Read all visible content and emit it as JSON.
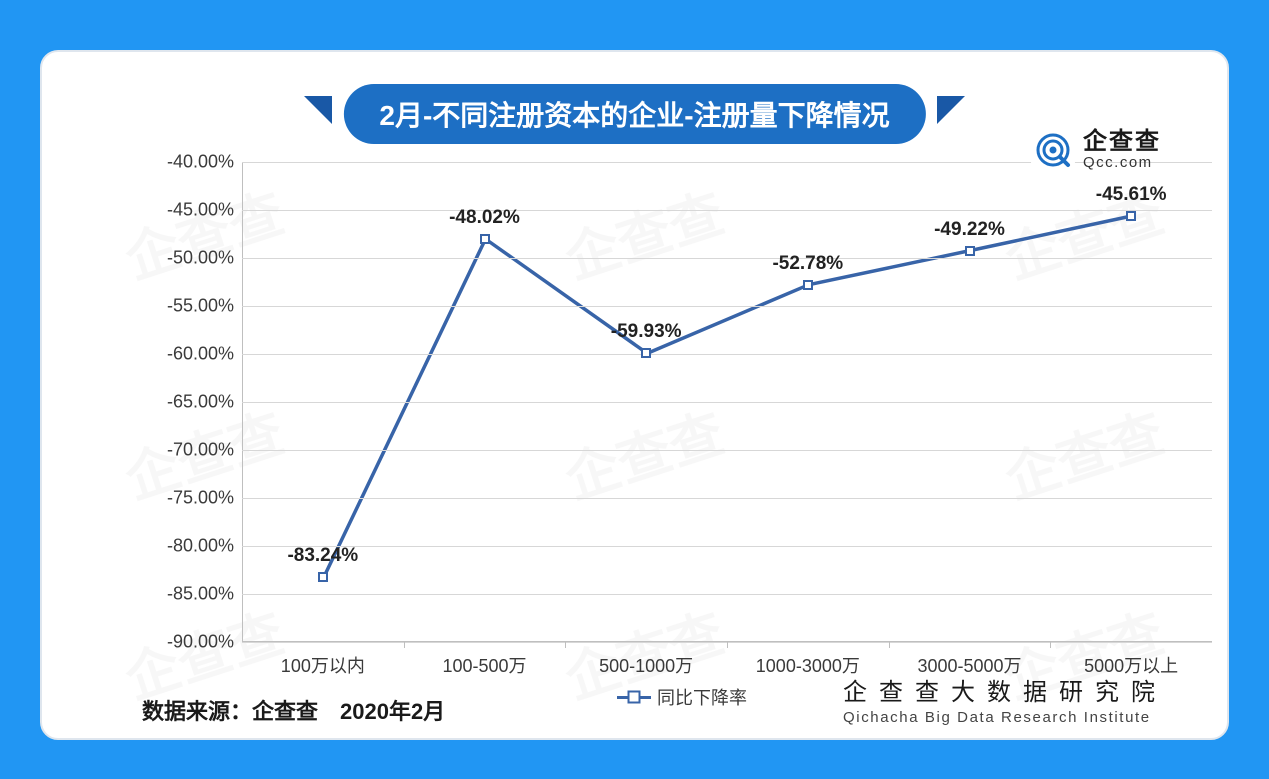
{
  "title": "2月-不同注册资本的企业-注册量下降情况",
  "brand": {
    "zh": "企查查",
    "en": "Qcc.com"
  },
  "source_label": "数据来源：企查查　2020年2月",
  "institute": {
    "zh": "企查查大数据研究院",
    "en": "Qichacha Big Data Research Institute"
  },
  "chart": {
    "type": "line",
    "categories": [
      "100万以内",
      "100-500万",
      "500-1000万",
      "1000-3000万",
      "3000-5000万",
      "5000万以上"
    ],
    "values": [
      -83.24,
      -48.02,
      -59.93,
      -52.78,
      -49.22,
      -45.61
    ],
    "value_labels": [
      "-83.24%",
      "-48.02%",
      "-59.93%",
      "-52.78%",
      "-49.22%",
      "-45.61%"
    ],
    "ylim": [
      -90,
      -40
    ],
    "ytick_step": 5,
    "ytick_labels": [
      "-40.00%",
      "-45.00%",
      "-50.00%",
      "-55.00%",
      "-60.00%",
      "-65.00%",
      "-70.00%",
      "-75.00%",
      "-80.00%",
      "-85.00%",
      "-90.00%"
    ],
    "legend_label": "同比下降率",
    "line_color": "#3864a8",
    "line_width": 3.5,
    "marker_color": "#3864a8",
    "marker_size": 10,
    "grid_color": "#d7d7d7",
    "axis_color": "#bfbfbf",
    "background_color": "#ffffff",
    "title_fontsize": 28,
    "label_fontsize": 18,
    "data_label_fontsize": 19
  },
  "outer_bg": "#2196f3",
  "watermark_text": "企查查"
}
